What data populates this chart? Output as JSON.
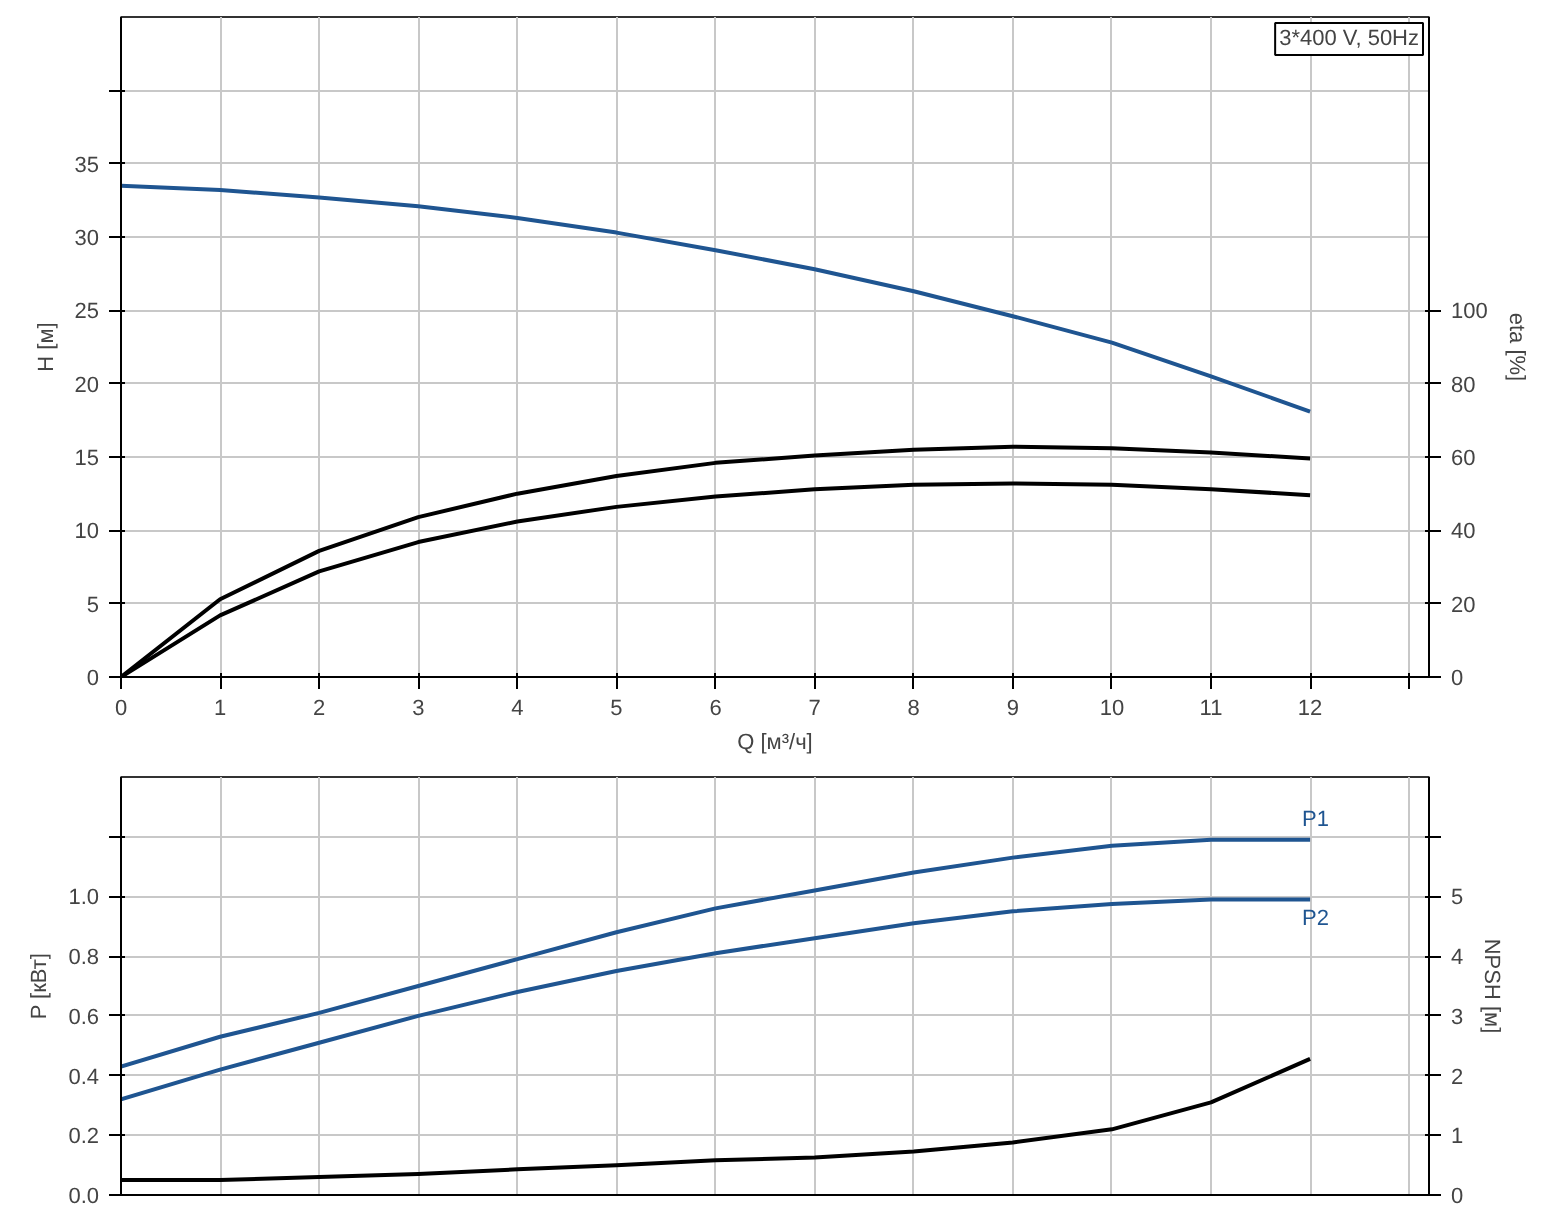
{
  "chart_data": [
    {
      "type": "line",
      "xlabel": "Q [м³/ч]",
      "ylabel": "H [м]",
      "y2label": "eta [%]",
      "annotations": [
        "3*400 V, 50Hz"
      ],
      "x": [
        0,
        1,
        2,
        3,
        4,
        5,
        6,
        7,
        8,
        9,
        10,
        11,
        12
      ],
      "xlim": [
        0,
        13.2
      ],
      "xticks": [
        0,
        1,
        2,
        3,
        4,
        5,
        6,
        7,
        8,
        9,
        10,
        11,
        12,
        {
          "value": 13,
          "label": null
        }
      ],
      "ylim": [
        0,
        45
      ],
      "yticks": [
        0,
        5,
        10,
        15,
        20,
        25,
        30,
        35,
        {
          "value": 40,
          "label": null
        }
      ],
      "y2lim": [
        0,
        180
      ],
      "y2ticks": [
        0,
        20,
        40,
        60,
        80,
        100
      ],
      "grid": true,
      "series": [
        {
          "color": "#1f5591",
          "values": [
            33.5,
            33.2,
            32.7,
            32.1,
            31.3,
            30.3,
            29.1,
            27.8,
            26.3,
            24.6,
            22.8,
            20.5,
            18.1
          ]
        },
        {
          "color": "#000000",
          "axis": "y2",
          "values": [
            0,
            21.2,
            34.4,
            43.6,
            50,
            54.8,
            58.4,
            60.4,
            62,
            62.8,
            62.4,
            61.2,
            59.6
          ]
        },
        {
          "color": "#000000",
          "axis": "y2",
          "values": [
            0,
            16.8,
            28.8,
            36.8,
            42.4,
            46.4,
            49.2,
            51.2,
            52.4,
            52.8,
            52.4,
            51.2,
            49.6
          ]
        }
      ]
    },
    {
      "type": "line",
      "ylabel": "P [кВт]",
      "y2label": "NPSH [м]",
      "tick_labels": "y",
      "x": [
        0,
        1,
        2,
        3,
        4,
        5,
        6,
        7,
        8,
        9,
        10,
        11,
        12
      ],
      "xlim": [
        0,
        13.2
      ],
      "xticks": [
        0,
        1,
        2,
        3,
        4,
        5,
        6,
        7,
        8,
        9,
        10,
        11,
        12,
        {
          "value": 13,
          "label": null
        }
      ],
      "ylim": [
        0,
        1.4
      ],
      "yticks": [
        {
          "value": 0,
          "label": "0.0"
        },
        0.2,
        0.4,
        0.6,
        0.8,
        {
          "value": 1,
          "label": "1.0"
        },
        {
          "value": 1.2,
          "label": null
        }
      ],
      "y2lim": [
        0,
        7
      ],
      "y2ticks": [
        0,
        1,
        2,
        3,
        4,
        5,
        {
          "value": 6,
          "label": null
        }
      ],
      "grid": true,
      "series": [
        {
          "name": "P1",
          "color": "#1f5591",
          "values": [
            0.43,
            0.53,
            0.61,
            0.7,
            0.79,
            0.88,
            0.96,
            1.02,
            1.08,
            1.13,
            1.17,
            1.19,
            1.19
          ]
        },
        {
          "name": "P2",
          "color": "#1f5591",
          "values": [
            0.32,
            0.42,
            0.51,
            0.6,
            0.68,
            0.75,
            0.81,
            0.86,
            0.91,
            0.95,
            0.975,
            0.99,
            0.99
          ]
        },
        {
          "color": "#000000",
          "axis": "y2",
          "values": [
            0.25,
            0.25,
            0.3,
            0.35,
            0.43,
            0.5,
            0.58,
            0.63,
            0.73,
            0.88,
            1.1,
            1.55,
            2.28
          ]
        }
      ]
    }
  ]
}
